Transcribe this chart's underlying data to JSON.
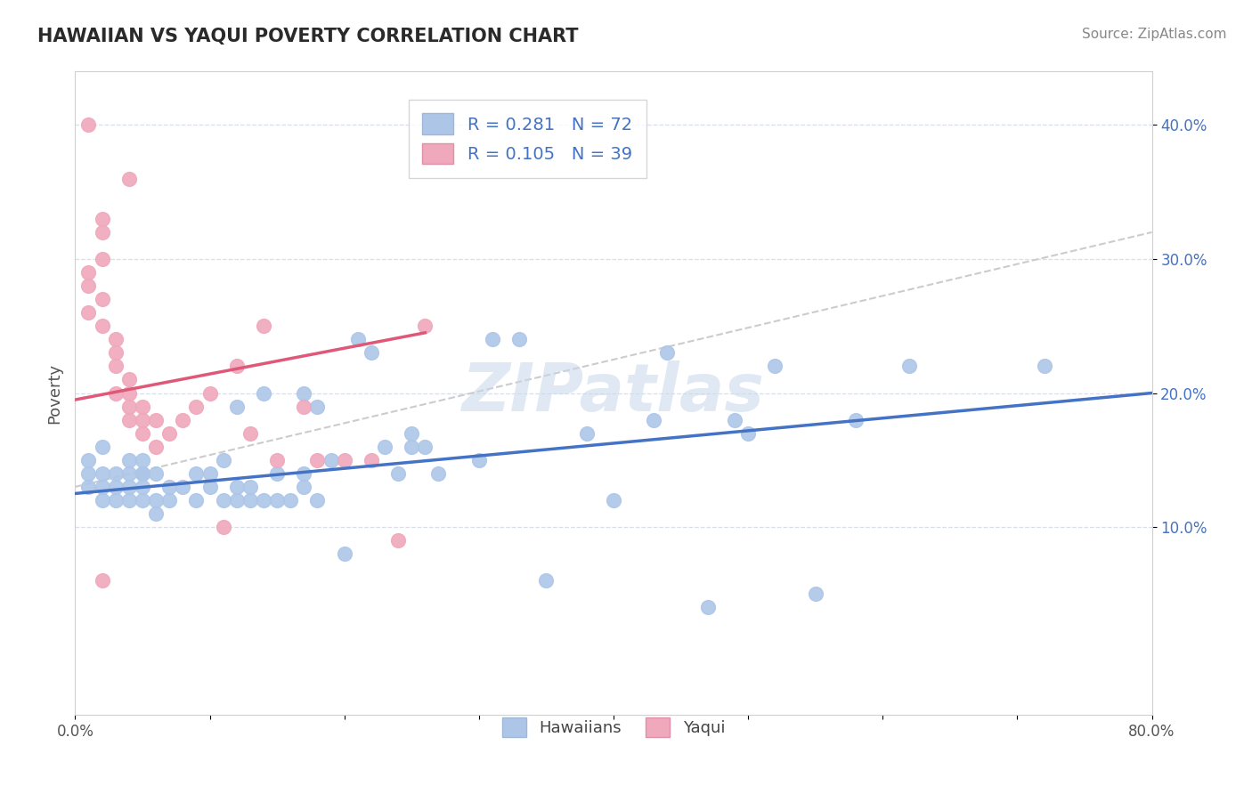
{
  "title": "HAWAIIAN VS YAQUI POVERTY CORRELATION CHART",
  "source": "Source: ZipAtlas.com",
  "ylabel": "Poverty",
  "watermark": "ZIPatlas",
  "xlim": [
    0.0,
    0.8
  ],
  "ylim": [
    -0.04,
    0.44
  ],
  "xticks": [
    0.0,
    0.1,
    0.2,
    0.3,
    0.4,
    0.5,
    0.6,
    0.7,
    0.8
  ],
  "xticklabels": [
    "0.0%",
    "",
    "",
    "",
    "",
    "",
    "",
    "",
    "80.0%"
  ],
  "yticks": [
    0.1,
    0.2,
    0.3,
    0.4
  ],
  "yticklabels": [
    "10.0%",
    "20.0%",
    "30.0%",
    "40.0%"
  ],
  "hawaiian_R": 0.281,
  "hawaiian_N": 72,
  "yaqui_R": 0.105,
  "yaqui_N": 39,
  "hawaiian_color": "#adc6e8",
  "yaqui_color": "#f0a8bc",
  "hawaiian_line_color": "#4472c4",
  "yaqui_line_color": "#e05878",
  "trend_dash_color": "#cccccc",
  "grid_color": "#d8dfe8",
  "background_color": "#ffffff",
  "hawaiians_x": [
    0.01,
    0.01,
    0.01,
    0.02,
    0.02,
    0.02,
    0.02,
    0.03,
    0.03,
    0.03,
    0.04,
    0.04,
    0.04,
    0.04,
    0.05,
    0.05,
    0.05,
    0.05,
    0.05,
    0.06,
    0.06,
    0.06,
    0.07,
    0.07,
    0.08,
    0.09,
    0.09,
    0.1,
    0.1,
    0.11,
    0.11,
    0.12,
    0.12,
    0.12,
    0.13,
    0.13,
    0.14,
    0.14,
    0.15,
    0.15,
    0.16,
    0.17,
    0.17,
    0.17,
    0.18,
    0.18,
    0.19,
    0.2,
    0.21,
    0.22,
    0.23,
    0.24,
    0.25,
    0.25,
    0.26,
    0.27,
    0.3,
    0.31,
    0.33,
    0.35,
    0.38,
    0.4,
    0.43,
    0.44,
    0.47,
    0.49,
    0.5,
    0.52,
    0.55,
    0.58,
    0.62,
    0.72
  ],
  "hawaiians_y": [
    0.13,
    0.14,
    0.15,
    0.12,
    0.13,
    0.14,
    0.16,
    0.12,
    0.13,
    0.14,
    0.12,
    0.13,
    0.14,
    0.15,
    0.12,
    0.13,
    0.14,
    0.15,
    0.14,
    0.11,
    0.12,
    0.14,
    0.12,
    0.13,
    0.13,
    0.12,
    0.14,
    0.13,
    0.14,
    0.12,
    0.15,
    0.12,
    0.13,
    0.19,
    0.12,
    0.13,
    0.12,
    0.2,
    0.12,
    0.14,
    0.12,
    0.13,
    0.14,
    0.2,
    0.12,
    0.19,
    0.15,
    0.08,
    0.24,
    0.23,
    0.16,
    0.14,
    0.16,
    0.17,
    0.16,
    0.14,
    0.15,
    0.24,
    0.24,
    0.06,
    0.17,
    0.12,
    0.18,
    0.23,
    0.04,
    0.18,
    0.17,
    0.22,
    0.05,
    0.18,
    0.22,
    0.22
  ],
  "yaqui_x": [
    0.01,
    0.01,
    0.01,
    0.02,
    0.02,
    0.02,
    0.02,
    0.03,
    0.03,
    0.03,
    0.03,
    0.04,
    0.04,
    0.04,
    0.04,
    0.05,
    0.05,
    0.05,
    0.06,
    0.06,
    0.07,
    0.08,
    0.09,
    0.1,
    0.11,
    0.12,
    0.13,
    0.14,
    0.15,
    0.17,
    0.18,
    0.2,
    0.22,
    0.24,
    0.26,
    0.01,
    0.02,
    0.02,
    0.04
  ],
  "yaqui_y": [
    0.29,
    0.28,
    0.26,
    0.33,
    0.32,
    0.27,
    0.25,
    0.24,
    0.23,
    0.22,
    0.2,
    0.21,
    0.2,
    0.19,
    0.18,
    0.19,
    0.18,
    0.17,
    0.18,
    0.16,
    0.17,
    0.18,
    0.19,
    0.2,
    0.1,
    0.22,
    0.17,
    0.25,
    0.15,
    0.19,
    0.15,
    0.15,
    0.15,
    0.09,
    0.25,
    0.4,
    0.3,
    0.06,
    0.36
  ],
  "yaqui_line_x0": 0.0,
  "yaqui_line_y0": 0.195,
  "yaqui_line_x1": 0.26,
  "yaqui_line_y1": 0.245,
  "hawaiian_line_x0": 0.0,
  "hawaiian_line_y0": 0.125,
  "hawaiian_line_x1": 0.8,
  "hawaiian_line_y1": 0.2,
  "dash_line_x0": 0.0,
  "dash_line_y0": 0.13,
  "dash_line_x1": 0.8,
  "dash_line_y1": 0.32
}
